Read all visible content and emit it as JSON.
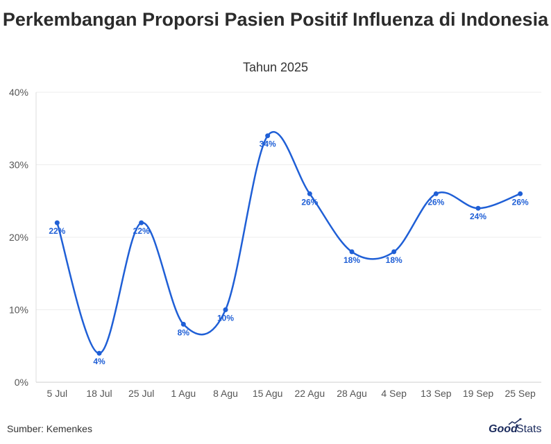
{
  "title": "Perkembangan Proporsi Pasien Positif Influenza di Indonesia",
  "subtitle": "Tahun 2025",
  "source": "Sumber: Kemenkes",
  "brand": {
    "good": "Good",
    "stats": "Stats"
  },
  "colors": {
    "line": "#1f5fd6",
    "grid": "#ececec",
    "tick_text": "#555555",
    "label": "#1f5fd6"
  },
  "chart_data": {
    "type": "line",
    "title": "Perkembangan Proporsi Pasien Positif Influenza di Indonesia",
    "subtitle": "Tahun 2025",
    "categories": [
      "5 Jul",
      "18 Jul",
      "25 Jul",
      "1 Agu",
      "8 Agu",
      "15 Agu",
      "22 Agu",
      "28 Agu",
      "4 Sep",
      "13 Sep",
      "19 Sep",
      "25 Sep"
    ],
    "values": [
      22,
      4,
      22,
      8,
      10,
      34,
      26,
      18,
      18,
      26,
      24,
      26
    ],
    "data_labels": [
      "22%",
      "4%",
      "22%",
      "8%",
      "10%",
      "34%",
      "26%",
      "18%",
      "18%",
      "26%",
      "24%",
      "26%"
    ],
    "ylim": [
      0,
      40
    ],
    "yticks": [
      0,
      10,
      20,
      30,
      40
    ],
    "ytick_labels": [
      "0%",
      "10%",
      "20%",
      "30%",
      "40%"
    ],
    "grid": true,
    "xlabel": "",
    "ylabel": ""
  }
}
